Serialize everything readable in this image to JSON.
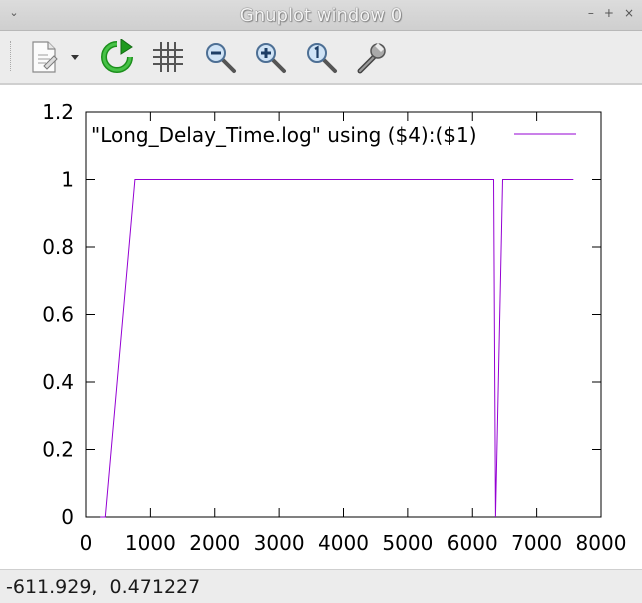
{
  "window": {
    "title": "Gnuplot window 0",
    "menu_glyph": "⌄",
    "controls": [
      "–",
      "+",
      "×"
    ]
  },
  "toolbar": {
    "items": [
      {
        "name": "export-icon",
        "icon": "document-export"
      },
      {
        "name": "export-dropdown-icon",
        "icon": "chevron-down"
      },
      {
        "name": "replot-icon",
        "icon": "refresh"
      },
      {
        "name": "grid-icon",
        "icon": "grid"
      },
      {
        "name": "zoom-previous-icon",
        "icon": "zoom-out"
      },
      {
        "name": "zoom-next-icon",
        "icon": "zoom-in"
      },
      {
        "name": "unzoom-icon",
        "icon": "zoom-reset"
      },
      {
        "name": "settings-icon",
        "icon": "wrench"
      }
    ]
  },
  "chart_data": {
    "type": "line",
    "title": "",
    "xlabel": "",
    "ylabel": "",
    "xlim": [
      0,
      8000
    ],
    "ylim": [
      0,
      1.2
    ],
    "x_ticks": [
      "0",
      "1000",
      "2000",
      "3000",
      "4000",
      "5000",
      "6000",
      "7000",
      "8000"
    ],
    "y_ticks": [
      "0",
      "0.2",
      "0.4",
      "0.6",
      "0.8",
      "1",
      "1.2"
    ],
    "grid": false,
    "legend_position": "top-right",
    "series": [
      {
        "name": "\"Long_Delay_Time.log\" using ($4):($1)",
        "color": "#9400d3",
        "x": [
          220,
          300,
          760,
          6330,
          6360,
          6470,
          7570
        ],
        "y": [
          0,
          0,
          1,
          1,
          0,
          1,
          1
        ]
      }
    ]
  },
  "status": {
    "coords": "-611.929,  0.471227"
  }
}
